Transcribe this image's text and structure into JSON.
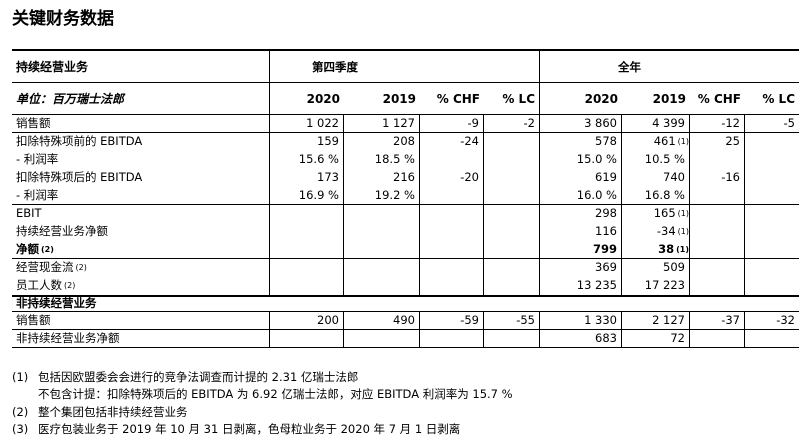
{
  "title": "关键财务数据",
  "header": {
    "segment": "持续经营业务",
    "q4": "第四季度",
    "fy": "全年",
    "unit": "单位：百万瑞士法郎",
    "cols": [
      "2020",
      "2019",
      "% CHF",
      "% LC",
      "2020",
      "2019",
      "% CHF",
      "% LC"
    ]
  },
  "rows": [
    {
      "label": "销售额",
      "note": "",
      "v": [
        "1 022",
        "1 127",
        "-9",
        "-2",
        "3 860",
        "4 399",
        "-12",
        "-5"
      ],
      "n6": ""
    },
    {
      "label": "扣除特殊项前的 EBITDA",
      "note": "",
      "v": [
        "159",
        "208",
        "-24",
        "",
        "578",
        "461",
        "25",
        ""
      ],
      "n6": "(1)"
    },
    {
      "label": "- 利润率",
      "note": "",
      "v": [
        "15.6 %",
        "18.5 %",
        "",
        "",
        "15.0 %",
        "10.5 %",
        "",
        ""
      ],
      "n6": ""
    },
    {
      "label": "扣除特殊项后的 EBITDA",
      "note": "",
      "v": [
        "173",
        "216",
        "-20",
        "",
        "619",
        "740",
        "-16",
        ""
      ],
      "n6": ""
    },
    {
      "label": "- 利润率",
      "note": "",
      "v": [
        "16.9 %",
        "19.2 %",
        "",
        "",
        "16.0 %",
        "16.8 %",
        "",
        ""
      ],
      "n6": ""
    },
    {
      "label": "EBIT",
      "note": "",
      "v": [
        "",
        "",
        "",
        "",
        "298",
        "165",
        "",
        ""
      ],
      "n6": "(1)"
    },
    {
      "label": "持续经营业务净额",
      "note": "",
      "v": [
        "",
        "",
        "",
        "",
        "116",
        "-34",
        "",
        ""
      ],
      "n6": "(1)"
    },
    {
      "label": "净额",
      "note": "(2)",
      "v": [
        "",
        "",
        "",
        "",
        "799",
        "38",
        "",
        ""
      ],
      "n6": "(1)"
    },
    {
      "label": "经营现金流",
      "note": "(2)",
      "v": [
        "",
        "",
        "",
        "",
        "369",
        "509",
        "",
        ""
      ],
      "n6": ""
    },
    {
      "label": "员工人数",
      "note": "(2)",
      "v": [
        "",
        "",
        "",
        "",
        "13 235",
        "17 223",
        "",
        ""
      ],
      "n6": ""
    }
  ],
  "discontinued": {
    "label": "非持续经营业务",
    "rows": [
      {
        "label": "销售额",
        "note": "",
        "v": [
          "200",
          "490",
          "-59",
          "-55",
          "1 330",
          "2 127",
          "-37",
          "-32"
        ],
        "n6": ""
      },
      {
        "label": "非持续经营业务净额",
        "note": "",
        "v": [
          "",
          "",
          "",
          "",
          "683",
          "72",
          "",
          ""
        ],
        "n6": ""
      }
    ]
  },
  "footnotes": [
    {
      "num": "(1)",
      "text": "包括因欧盟委会会进行的竞争法调查而计提的 2.31 亿瑞士法郎"
    },
    {
      "num": "",
      "text": "不包含计提：扣除特殊项后的 EBITDA 为 6.92 亿瑞士法郎，对应 EBITDA 利润率为 15.7 %"
    },
    {
      "num": "(2)",
      "text": "整个集团包括非持续经营业务"
    },
    {
      "num": "(3)",
      "text": "医疗包装业务于 2019 年 10 月 31 日剥离，色母粒业务于 2020 年 7 月 1 日剥离"
    }
  ]
}
